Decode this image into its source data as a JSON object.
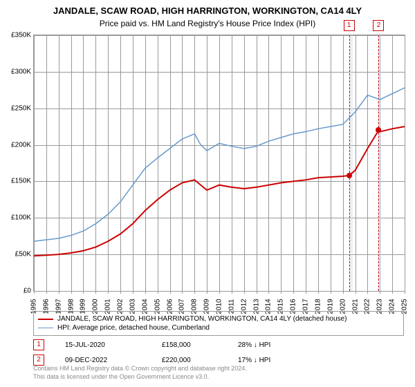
{
  "title": "JANDALE, SCAW ROAD, HIGH HARRINGTON, WORKINGTON, CA14 4LY",
  "subtitle": "Price paid vs. HM Land Registry's House Price Index (HPI)",
  "chart": {
    "type": "line",
    "background_color": "#ffffff",
    "grid_color": "#999999",
    "ylim": [
      0,
      350000
    ],
    "ytick_step": 50000,
    "ylabels": [
      "£0",
      "£50K",
      "£100K",
      "£150K",
      "£200K",
      "£250K",
      "£300K",
      "£350K"
    ],
    "xlim": [
      1995,
      2025
    ],
    "xticks": [
      1995,
      1996,
      1997,
      1998,
      1999,
      2000,
      2001,
      2002,
      2003,
      2004,
      2005,
      2006,
      2007,
      2008,
      2009,
      2010,
      2011,
      2012,
      2013,
      2014,
      2015,
      2016,
      2017,
      2018,
      2019,
      2020,
      2021,
      2022,
      2023,
      2024,
      2025
    ],
    "title_fontsize": 13,
    "subtitle_fontsize": 12,
    "axis_fontsize": 10,
    "series": [
      {
        "name": "property",
        "color": "#cc0000",
        "line_width": 2,
        "label": "JANDALE, SCAW ROAD, HIGH HARRINGTON, WORKINGTON, CA14 4LY (detached house)",
        "data": [
          [
            1995,
            48000
          ],
          [
            1996,
            49000
          ],
          [
            1997,
            50000
          ],
          [
            1998,
            52000
          ],
          [
            1999,
            55000
          ],
          [
            2000,
            60000
          ],
          [
            2001,
            68000
          ],
          [
            2002,
            78000
          ],
          [
            2003,
            92000
          ],
          [
            2004,
            110000
          ],
          [
            2005,
            125000
          ],
          [
            2006,
            138000
          ],
          [
            2007,
            148000
          ],
          [
            2008,
            152000
          ],
          [
            2008.5,
            145000
          ],
          [
            2009,
            138000
          ],
          [
            2010,
            145000
          ],
          [
            2011,
            142000
          ],
          [
            2012,
            140000
          ],
          [
            2013,
            142000
          ],
          [
            2014,
            145000
          ],
          [
            2015,
            148000
          ],
          [
            2016,
            150000
          ],
          [
            2017,
            152000
          ],
          [
            2018,
            155000
          ],
          [
            2019,
            156000
          ],
          [
            2020,
            157000
          ],
          [
            2020.5,
            158000
          ],
          [
            2021,
            165000
          ],
          [
            2022,
            195000
          ],
          [
            2022.9,
            220000
          ],
          [
            2023,
            218000
          ],
          [
            2024,
            222000
          ],
          [
            2025,
            225000
          ]
        ]
      },
      {
        "name": "hpi",
        "color": "#6699cc",
        "line_width": 1.5,
        "label": "HPI: Average price, detached house, Cumberland",
        "data": [
          [
            1995,
            68000
          ],
          [
            1996,
            70000
          ],
          [
            1997,
            72000
          ],
          [
            1998,
            76000
          ],
          [
            1999,
            82000
          ],
          [
            2000,
            92000
          ],
          [
            2001,
            105000
          ],
          [
            2002,
            122000
          ],
          [
            2003,
            145000
          ],
          [
            2004,
            168000
          ],
          [
            2005,
            182000
          ],
          [
            2006,
            195000
          ],
          [
            2007,
            208000
          ],
          [
            2008,
            215000
          ],
          [
            2008.5,
            200000
          ],
          [
            2009,
            192000
          ],
          [
            2010,
            202000
          ],
          [
            2011,
            198000
          ],
          [
            2012,
            195000
          ],
          [
            2013,
            198000
          ],
          [
            2014,
            205000
          ],
          [
            2015,
            210000
          ],
          [
            2016,
            215000
          ],
          [
            2017,
            218000
          ],
          [
            2018,
            222000
          ],
          [
            2019,
            225000
          ],
          [
            2020,
            228000
          ],
          [
            2021,
            245000
          ],
          [
            2022,
            268000
          ],
          [
            2023,
            262000
          ],
          [
            2024,
            270000
          ],
          [
            2025,
            278000
          ]
        ]
      }
    ],
    "highlight_bands": [
      {
        "start": 2020.5,
        "end": 2020.8
      },
      {
        "start": 2022.8,
        "end": 2023.1
      }
    ],
    "highlight_lines": [
      2020.5,
      2022.9
    ],
    "markers": [
      {
        "x": 2020.5,
        "y": 158000,
        "label": "1"
      },
      {
        "x": 2022.9,
        "y": 220000,
        "label": "2"
      }
    ]
  },
  "legend": {
    "items": [
      {
        "color": "#cc0000",
        "width": 2,
        "label": "JANDALE, SCAW ROAD, HIGH HARRINGTON, WORKINGTON, CA14 4LY (detached house)"
      },
      {
        "color": "#6699cc",
        "width": 1.5,
        "label": "HPI: Average price, detached house, Cumberland"
      }
    ]
  },
  "events": [
    {
      "num": "1",
      "date": "15-JUL-2020",
      "price": "£158,000",
      "pct": "28% ↓ HPI"
    },
    {
      "num": "2",
      "date": "09-DEC-2022",
      "price": "£220,000",
      "pct": "17% ↓ HPI"
    }
  ],
  "footer": {
    "line1": "Contains HM Land Registry data © Crown copyright and database right 2024.",
    "line2": "This data is licensed under the Open Government Licence v3.0."
  }
}
